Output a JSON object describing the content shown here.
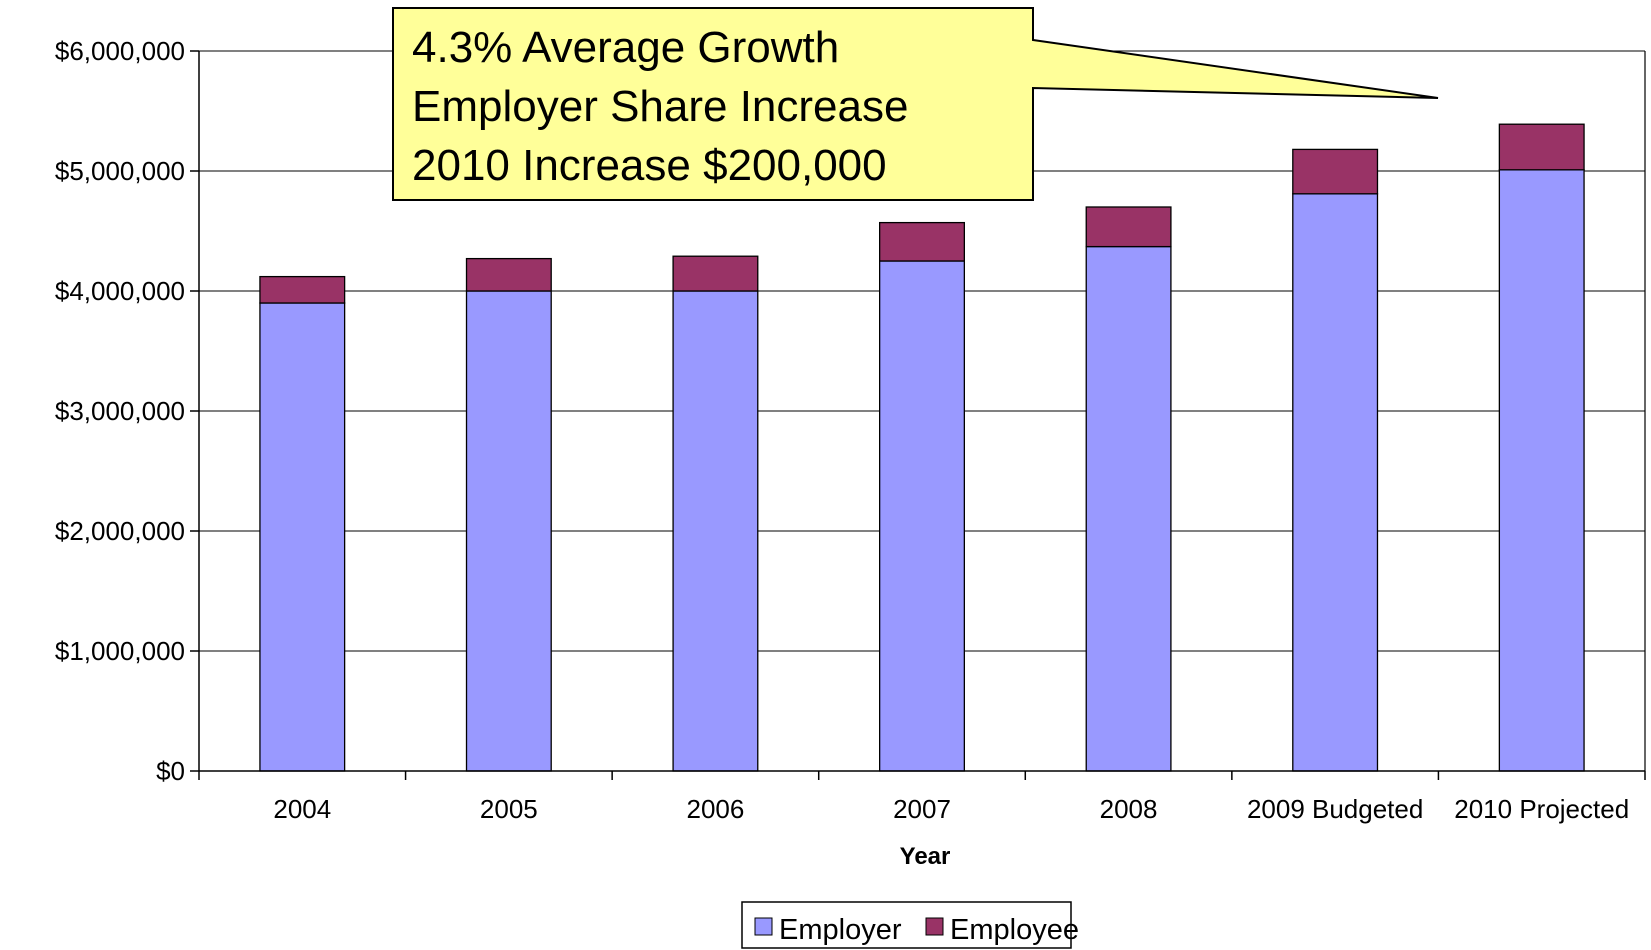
{
  "chart_data": {
    "type": "bar",
    "stacked": true,
    "categories": [
      "2004",
      "2005",
      "2006",
      "2007",
      "2008",
      "2009 Budgeted",
      "2010 Projected"
    ],
    "series": [
      {
        "name": "Employer",
        "color": "#9999FF",
        "values": [
          3900000,
          4000000,
          4000000,
          4250000,
          4370000,
          4810000,
          5010000
        ]
      },
      {
        "name": "Employee",
        "color": "#993366",
        "values": [
          220000,
          270000,
          290000,
          320000,
          330000,
          370000,
          380000
        ]
      }
    ],
    "ylim": [
      0,
      6000000
    ],
    "yticks": [
      0,
      1000000,
      2000000,
      3000000,
      4000000,
      5000000,
      6000000
    ],
    "ytick_labels": [
      "$0",
      "$1,000,000",
      "$2,000,000",
      "$3,000,000",
      "$4,000,000",
      "$5,000,000",
      "$6,000,000"
    ],
    "xlabel": "Year",
    "ylabel": "",
    "title": "",
    "grid": true,
    "legend_position": "bottom",
    "annotation": {
      "lines": [
        "4.3% Average Growth",
        "Employer Share Increase",
        "2010 Increase $200,000"
      ],
      "fill": "#FFFF99",
      "points_to": "2010 Projected"
    }
  }
}
